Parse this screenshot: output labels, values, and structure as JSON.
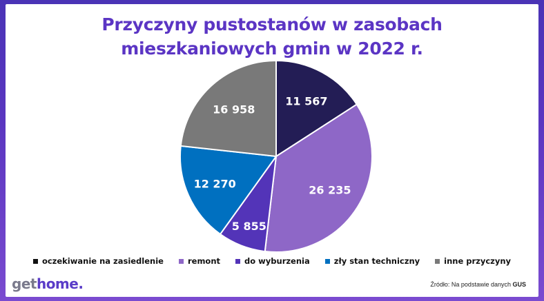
{
  "chart_data": {
    "type": "pie",
    "title_lines": [
      "Przyczyny pustostanów w zasobach",
      "mieszkaniowych gmin w 2022 r."
    ],
    "categories": [
      "oczekiwanie na zasiedlenie",
      "remont",
      "do wyburzenia",
      "zły stan techniczny",
      "inne przyczyny"
    ],
    "values": [
      11567,
      26235,
      5855,
      12270,
      16958
    ],
    "value_labels": [
      "11 567",
      "26 235",
      "5 855",
      "12 270",
      "16 958"
    ],
    "colors": [
      "#231d55",
      "#8e67c7",
      "#5334b8",
      "#0070c0",
      "#797979"
    ],
    "legend_position": "bottom"
  },
  "branding": {
    "logo_get": "get",
    "logo_home": "home",
    "logo_dot": ".",
    "source_prefix": "Źródło: Na podstawie danych ",
    "source_name": "GUS"
  }
}
